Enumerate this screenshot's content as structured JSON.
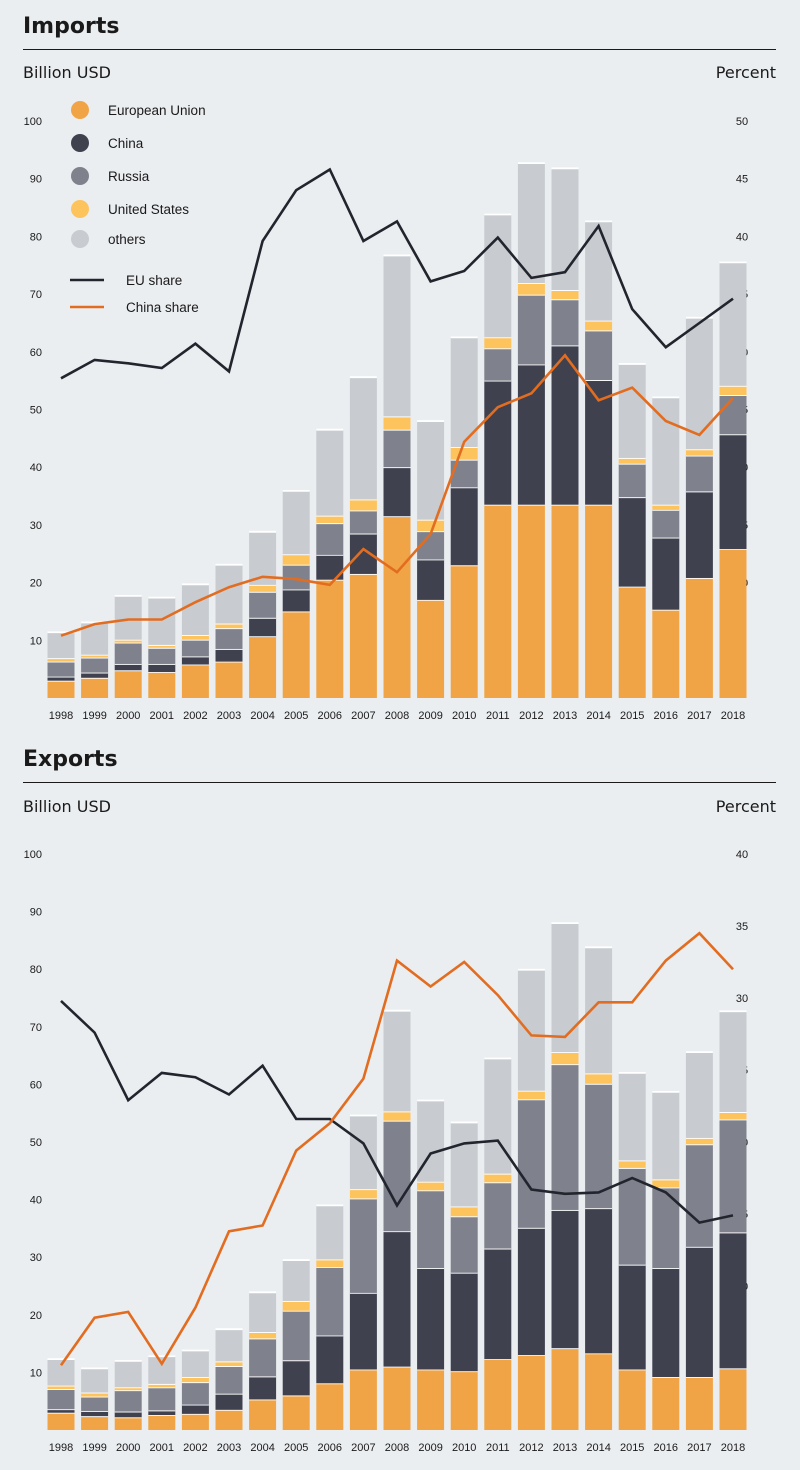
{
  "imports": {
    "title": "Imports",
    "left_unit": "Billion USD",
    "right_unit": "Percent"
  },
  "exports": {
    "title": "Exports",
    "left_unit": "Billion USD",
    "right_unit": "Percent"
  },
  "chart_data": [
    {
      "id": "imports",
      "type": "bar",
      "stacked": true,
      "title": "Imports",
      "ylabel": "Billion USD",
      "y2label": "Percent",
      "ylim": [
        0,
        100
      ],
      "y2lim": [
        0,
        50
      ],
      "yticks": [
        10,
        20,
        30,
        40,
        50,
        60,
        70,
        80,
        90,
        100
      ],
      "y2ticks": [
        5,
        10,
        15,
        20,
        25,
        30,
        35,
        40,
        45,
        50
      ],
      "categories": [
        "1998",
        "1999",
        "2000",
        "2001",
        "2002",
        "2003",
        "2004",
        "2005",
        "2006",
        "2007",
        "2008",
        "2009",
        "2010",
        "2011",
        "2012",
        "2013",
        "2014",
        "2015",
        "2016",
        "2017",
        "2018"
      ],
      "series": [
        {
          "name": "European Union",
          "color": "#f0a445",
          "values": [
            3,
            3.5,
            4.8,
            4.5,
            5.8,
            6.3,
            10.7,
            15,
            20.5,
            21.5,
            31.5,
            17,
            23,
            33.5,
            33.5,
            33.5,
            33.5,
            19.3,
            15.3,
            20.8,
            25.8
          ]
        },
        {
          "name": "China",
          "color": "#3f414e",
          "values": [
            0.7,
            0.9,
            1.1,
            1.4,
            1.4,
            2.2,
            3.2,
            3.8,
            4.3,
            7,
            8.5,
            7,
            13.5,
            21.5,
            24.3,
            27.6,
            21.6,
            15.5,
            12.5,
            15,
            19.9
          ]
        },
        {
          "name": "Russia",
          "color": "#7f828c",
          "values": [
            2.6,
            2.6,
            3.7,
            2.8,
            2.9,
            3.6,
            4.5,
            4.3,
            5.5,
            4,
            6.5,
            4.9,
            4.8,
            5.6,
            12.1,
            8,
            8.6,
            5.8,
            4.8,
            6.2,
            6.8
          ]
        },
        {
          "name": "United States",
          "color": "#fdc35d",
          "values": [
            0.6,
            0.5,
            0.5,
            0.5,
            0.8,
            0.8,
            1.2,
            1.8,
            1.3,
            1.9,
            2.3,
            2,
            2.2,
            1.9,
            2,
            1.6,
            1.7,
            1,
            0.9,
            1.1,
            1.6
          ]
        },
        {
          "name": "others",
          "color": "#c8ccd0",
          "values": [
            4.5,
            5.6,
            7.6,
            8.2,
            8.8,
            10.2,
            9.2,
            11,
            14.9,
            21.2,
            27.9,
            17.1,
            19,
            21.3,
            20.8,
            21.1,
            17.2,
            16.3,
            18.6,
            22.8,
            21.4
          ]
        }
      ],
      "lines": [
        {
          "name": "EU share",
          "color": "#23252e",
          "values": [
            27.7,
            29.3,
            29,
            28.6,
            30.7,
            28.3,
            39.6,
            44,
            45.8,
            39.6,
            41.3,
            36.1,
            37,
            39.9,
            36.4,
            36.9,
            40.9,
            33.7,
            30.4,
            32.5,
            34.6
          ]
        },
        {
          "name": "China share",
          "color": "#e26d21",
          "values": [
            5.4,
            6.4,
            6.8,
            6.8,
            8.3,
            9.6,
            10.5,
            10.3,
            9.8,
            12.9,
            10.9,
            14.2,
            22.2,
            25.2,
            26.4,
            29.7,
            25.8,
            26.9,
            24,
            22.8,
            26
          ]
        }
      ],
      "legend": "top-left"
    },
    {
      "id": "exports",
      "type": "bar",
      "stacked": true,
      "title": "Exports",
      "ylabel": "Billion USD",
      "y2label": "Percent",
      "ylim": [
        0,
        100
      ],
      "y2lim": [
        0,
        40
      ],
      "yticks": [
        10,
        20,
        30,
        40,
        50,
        60,
        70,
        80,
        90,
        100
      ],
      "y2ticks": [
        5,
        10,
        15,
        20,
        25,
        30,
        35,
        40
      ],
      "categories": [
        "1998",
        "1999",
        "2000",
        "2001",
        "2002",
        "2003",
        "2004",
        "2005",
        "2006",
        "2007",
        "2008",
        "2009",
        "2010",
        "2011",
        "2012",
        "2013",
        "2014",
        "2015",
        "2016",
        "2017",
        "2018"
      ],
      "series": [
        {
          "name": "European Union",
          "color": "#f0a445",
          "values": [
            3,
            2.4,
            2.2,
            2.6,
            2.8,
            3.5,
            5.3,
            6,
            8.1,
            10.5,
            11,
            10.5,
            10.2,
            12.3,
            13,
            14.2,
            13.3,
            10.5,
            9.2,
            9.2,
            10.7
          ]
        },
        {
          "name": "China",
          "color": "#3f414e",
          "values": [
            0.6,
            0.9,
            1,
            0.8,
            1.6,
            2.8,
            4,
            6.1,
            8.3,
            13.3,
            23.5,
            17.6,
            17.1,
            19.2,
            22.1,
            24,
            25.2,
            18.2,
            18.9,
            22.6,
            23.6
          ]
        },
        {
          "name": "Russia",
          "color": "#7f828c",
          "values": [
            3.5,
            2.5,
            3.7,
            4,
            3.9,
            4.8,
            6.6,
            8.6,
            11.9,
            16.4,
            19.2,
            13.5,
            9.8,
            11.5,
            22.3,
            25.3,
            21.6,
            16.8,
            14,
            17.8,
            19.6
          ]
        },
        {
          "name": "United States",
          "color": "#fdc35d",
          "values": [
            0.6,
            0.7,
            0.5,
            0.6,
            0.9,
            0.8,
            1.1,
            1.7,
            1.3,
            1.6,
            1.6,
            1.5,
            1.7,
            1.5,
            1.5,
            2.1,
            1.8,
            1.3,
            1.4,
            1.1,
            1.3
          ]
        },
        {
          "name": "others",
          "color": "#c8ccd0",
          "values": [
            4.6,
            4.2,
            4.6,
            4.8,
            4.6,
            5.6,
            6.9,
            7.1,
            9.4,
            12.8,
            17.5,
            14.1,
            14.6,
            20,
            21,
            22.4,
            21.9,
            15.2,
            15.2,
            14.9,
            17.5
          ]
        }
      ],
      "lines": [
        {
          "name": "EU share",
          "color": "#23252e",
          "values": [
            29.8,
            27.6,
            22.9,
            24.8,
            24.5,
            23.3,
            25.3,
            21.6,
            21.6,
            19.9,
            15.6,
            19.2,
            19.9,
            20.1,
            16.7,
            16.4,
            16.5,
            17.5,
            16.5,
            14.4,
            14.9
          ]
        },
        {
          "name": "China share",
          "color": "#e26d21",
          "values": [
            4.5,
            7.8,
            8.2,
            4.6,
            8.5,
            13.8,
            14.2,
            19.4,
            21.3,
            24.4,
            32.6,
            30.8,
            32.5,
            30.2,
            27.4,
            27.3,
            29.7,
            29.7,
            32.6,
            34.5,
            32
          ]
        }
      ],
      "legend": "none"
    }
  ]
}
